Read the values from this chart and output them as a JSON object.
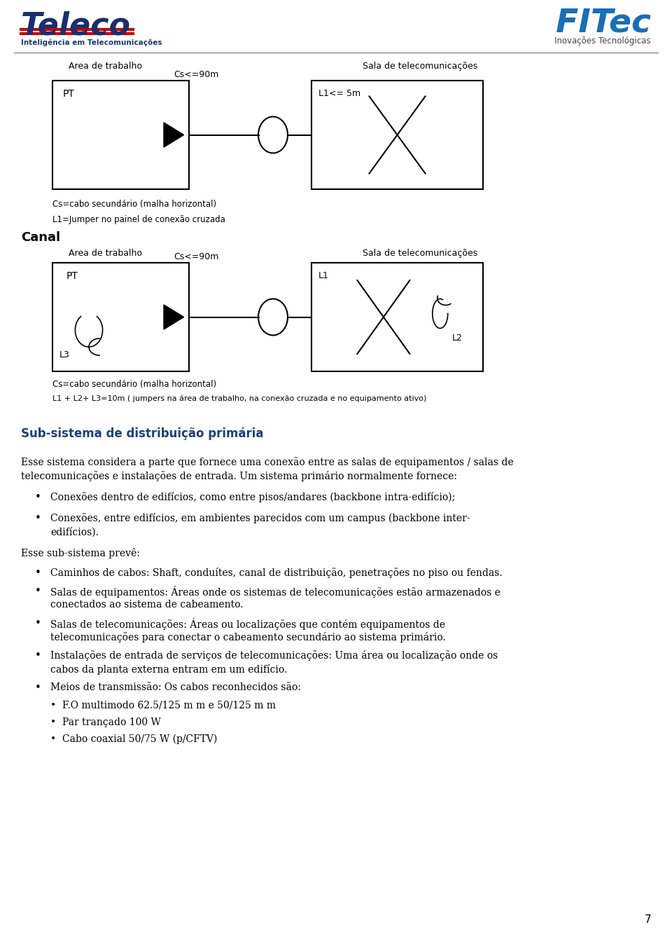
{
  "page_bg": "#ffffff",
  "page_number": "7",
  "teleco_sub": "Inteligência em Telecomunicações",
  "fitec_sub": "Inovações Tecnológicas",
  "diagram1": {
    "title_left": "Area de trabalho",
    "title_right": "Sala de telecomunicações",
    "label_cs": "Cs<=90m",
    "label_l1": "L1<= 5m",
    "label_pt": "PT",
    "caption1": "Cs=cabo secundário (malha horizontal)",
    "caption2": "L1=Jumper no painel de conexão cruzada"
  },
  "diagram2": {
    "title_left": "Area de trabalho",
    "title_right": "Sala de telecomunicações",
    "label_cs": "Cs<=90m",
    "label_l1": "L1",
    "label_l2": "L2",
    "label_l3": "L3",
    "label_pt": "PT",
    "caption1": "Cs=cabo secundário (malha horizontal)",
    "caption2": "L1 + L2+ L3=10m ( jumpers na área de trabalho, na conexão cruzada e no equipamento ativo)"
  },
  "canal_label": "Canal",
  "section_title": "Sub-sistema de distribuição primária",
  "para1_line1": "Esse sistema considera a parte que fornece uma conexão entre as salas de equipamentos / salas de",
  "para1_line2": "telecomunicações e instalações de entrada. Um sistema primário normalmente fornece:",
  "bullet1a": "Conexões dentro de edifícios, como entre pisos/andares (backbone intra-edifício);",
  "bullet1b_line1": "Conexões, entre edifícios, em ambientes parecidos com um campus (backbone inter-",
  "bullet1b_line2": "edifícios).",
  "para2": "Esse sub-sistema prevê:",
  "bullet2a": "Caminhos de cabos: Shaft, conduítes, canal de distribuição, penetrações no piso ou fendas.",
  "bullet2b_line1": "Salas de equipamentos: Áreas onde os sistemas de telecomunicações estão armazenados e",
  "bullet2b_line2": "conectados ao sistema de cabeamento.",
  "bullet2c_line1": "Salas de telecomunicações: Áreas ou localizações que contém equipamentos de",
  "bullet2c_line2": "telecomunicações para conectar o cabeamento secundário ao sistema primário.",
  "bullet2d_line1": "Instalações de entrada de serviços de telecomunicações: Uma área ou localização onde os",
  "bullet2d_line2": "cabos da planta externa entram em um edifício.",
  "bullet2e": "Meios de transmissão: Os cabos reconhecidos são:",
  "subbullet1": "F.O multimodo 62.5/125 m m e 50/125 m m",
  "subbullet2": "Par trançado 100 W",
  "subbullet3": "Cabo coaxial 50/75 W (p/CFTV)",
  "section_color": "#1f3f7a",
  "teleco_color": "#1a2e6e",
  "fitec_color": "#1a6eb5"
}
